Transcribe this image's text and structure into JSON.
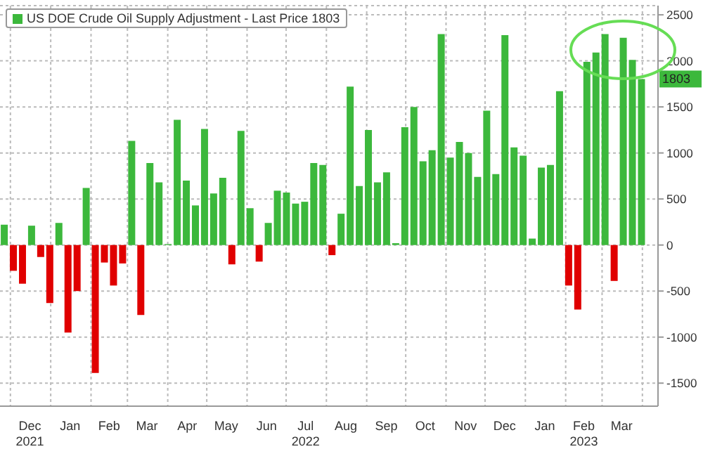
{
  "chart_data": {
    "type": "bar",
    "x": [
      "2021-11-26",
      "2021-12-03",
      "2021-12-10",
      "2021-12-17",
      "2021-12-24",
      "2021-12-31",
      "2022-01-07",
      "2022-01-14",
      "2022-01-21",
      "2022-01-28",
      "2022-02-04",
      "2022-02-11",
      "2022-02-18",
      "2022-02-25",
      "2022-03-04",
      "2022-03-11",
      "2022-03-18",
      "2022-03-25",
      "2022-04-01",
      "2022-04-08",
      "2022-04-15",
      "2022-04-22",
      "2022-04-29",
      "2022-05-06",
      "2022-05-13",
      "2022-05-20",
      "2022-05-27",
      "2022-06-03",
      "2022-06-10",
      "2022-06-17",
      "2022-06-24",
      "2022-07-01",
      "2022-07-08",
      "2022-07-15",
      "2022-07-22",
      "2022-07-29",
      "2022-08-05",
      "2022-08-12",
      "2022-08-19",
      "2022-08-26",
      "2022-09-02",
      "2022-09-09",
      "2022-09-16",
      "2022-09-23",
      "2022-09-30",
      "2022-10-07",
      "2022-10-14",
      "2022-10-21",
      "2022-10-28",
      "2022-11-04",
      "2022-11-11",
      "2022-11-18",
      "2022-11-25",
      "2022-12-02",
      "2022-12-09",
      "2022-12-16",
      "2022-12-23",
      "2022-12-30",
      "2023-01-06",
      "2023-01-13",
      "2023-01-20",
      "2023-01-27",
      "2023-02-03",
      "2023-02-10",
      "2023-02-17",
      "2023-02-24",
      "2023-03-03",
      "2023-03-10",
      "2023-03-17",
      "2023-03-24",
      "2023-03-31"
    ],
    "series": [
      {
        "name": "US DOE Crude Oil Supply Adjustment - Last Price 1803",
        "color": "#3cb83c",
        "values": [
          220,
          -280,
          -420,
          210,
          -130,
          -630,
          240,
          -950,
          -500,
          620,
          -1390,
          -190,
          -440,
          -200,
          1130,
          -760,
          890,
          680,
          10,
          1360,
          700,
          430,
          1260,
          560,
          730,
          -210,
          1240,
          400,
          -180,
          240,
          590,
          570,
          450,
          470,
          890,
          870,
          -110,
          340,
          1720,
          640,
          1250,
          680,
          790,
          20,
          1280,
          1500,
          910,
          1030,
          2290,
          950,
          1120,
          1000,
          740,
          1460,
          770,
          2280,
          1060,
          970,
          70,
          840,
          870,
          1670,
          -440,
          -700,
          1990,
          2090,
          2290,
          -390,
          2250,
          2010,
          1803
        ],
        "colors": [
          "#3cb83c",
          "#e00000",
          "#e00000",
          "#3cb83c",
          "#e00000",
          "#e00000",
          "#3cb83c",
          "#e00000",
          "#e00000",
          "#3cb83c",
          "#e00000",
          "#e00000",
          "#e00000",
          "#e00000",
          "#3cb83c",
          "#e00000",
          "#3cb83c",
          "#3cb83c",
          "#3cb83c",
          "#3cb83c",
          "#3cb83c",
          "#3cb83c",
          "#3cb83c",
          "#3cb83c",
          "#3cb83c",
          "#e00000",
          "#3cb83c",
          "#3cb83c",
          "#e00000",
          "#3cb83c",
          "#3cb83c",
          "#3cb83c",
          "#3cb83c",
          "#3cb83c",
          "#3cb83c",
          "#3cb83c",
          "#e00000",
          "#3cb83c",
          "#3cb83c",
          "#3cb83c",
          "#3cb83c",
          "#3cb83c",
          "#3cb83c",
          "#3cb83c",
          "#3cb83c",
          "#3cb83c",
          "#3cb83c",
          "#3cb83c",
          "#3cb83c",
          "#3cb83c",
          "#3cb83c",
          "#3cb83c",
          "#3cb83c",
          "#3cb83c",
          "#3cb83c",
          "#3cb83c",
          "#3cb83c",
          "#3cb83c",
          "#3cb83c",
          "#3cb83c",
          "#3cb83c",
          "#3cb83c",
          "#e00000",
          "#e00000",
          "#3cb83c",
          "#3cb83c",
          "#3cb83c",
          "#e00000",
          "#3cb83c",
          "#3cb83c",
          "#3cb83c"
        ]
      }
    ],
    "xlim": [
      "2021-11-23",
      "2023-04-13"
    ],
    "xticks": [
      {
        "value": "2021-12-01",
        "label": null
      },
      {
        "value": "2021-12-16",
        "label": "Dec\n2021"
      },
      {
        "value": "2022-01-01",
        "label": null
      },
      {
        "value": "2022-01-16",
        "label": "Jan"
      },
      {
        "value": "2022-02-01",
        "label": null
      },
      {
        "value": "2022-02-15",
        "label": "Feb"
      },
      {
        "value": "2022-03-01",
        "label": null
      },
      {
        "value": "2022-03-16",
        "label": "Mar"
      },
      {
        "value": "2022-04-01",
        "label": null
      },
      {
        "value": "2022-04-16",
        "label": "Apr"
      },
      {
        "value": "2022-05-01",
        "label": null
      },
      {
        "value": "2022-05-16",
        "label": "May"
      },
      {
        "value": "2022-06-01",
        "label": null
      },
      {
        "value": "2022-06-16",
        "label": "Jun"
      },
      {
        "value": "2022-07-01",
        "label": null
      },
      {
        "value": "2022-07-16",
        "label": "Jul\n2022"
      },
      {
        "value": "2022-08-01",
        "label": null
      },
      {
        "value": "2022-08-16",
        "label": "Aug"
      },
      {
        "value": "2022-09-01",
        "label": null
      },
      {
        "value": "2022-09-16",
        "label": "Sep"
      },
      {
        "value": "2022-10-01",
        "label": null
      },
      {
        "value": "2022-10-16",
        "label": "Oct"
      },
      {
        "value": "2022-11-01",
        "label": null
      },
      {
        "value": "2022-11-16",
        "label": "Nov"
      },
      {
        "value": "2022-12-01",
        "label": null
      },
      {
        "value": "2022-12-16",
        "label": "Dec"
      },
      {
        "value": "2023-01-01",
        "label": null
      },
      {
        "value": "2023-01-16",
        "label": "Jan"
      },
      {
        "value": "2023-02-01",
        "label": null
      },
      {
        "value": "2023-02-15",
        "label": "Feb\n2023"
      },
      {
        "value": "2023-03-01",
        "label": null
      },
      {
        "value": "2023-03-16",
        "label": "Mar"
      },
      {
        "value": "2023-04-01",
        "label": null
      }
    ],
    "ylim": [
      -1750,
      2600
    ],
    "yticks": [
      -1500,
      -1000,
      -500,
      0,
      500,
      1000,
      1500,
      2000,
      2500
    ],
    "grid": true,
    "legend": "top left",
    "annotations": [
      {
        "text": "1803",
        "x": "2023-03-31",
        "y": 1803
      }
    ]
  }
}
